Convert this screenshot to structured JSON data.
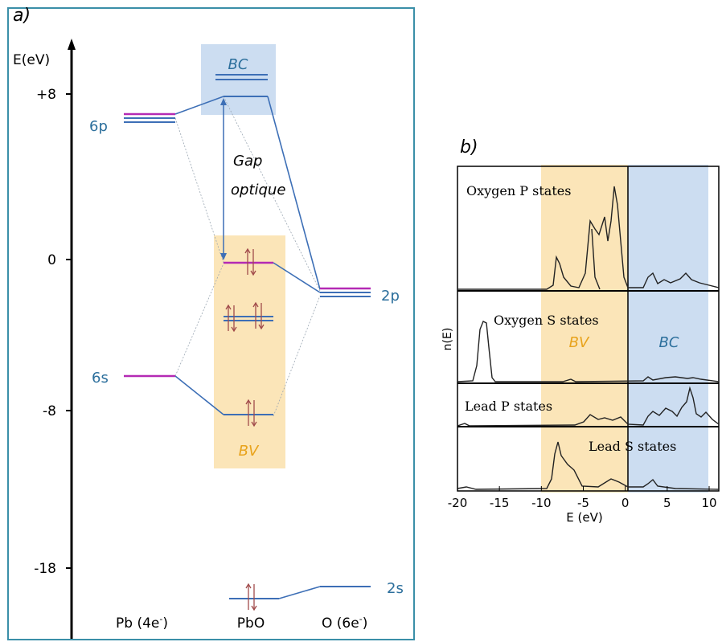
{
  "panel_a": {
    "label": "a)",
    "axis_label": "E(eV)",
    "ticks": [
      {
        "value": 8,
        "label": "+8"
      },
      {
        "value": 0,
        "label": "0"
      },
      {
        "value": -8,
        "label": "-8"
      },
      {
        "value": -18,
        "label": "-18"
      }
    ],
    "bc_label": "BC",
    "bv_label": "BV",
    "gap_label_line1": "Gap",
    "gap_label_line2": "optique",
    "pb_levels": [
      {
        "label": "6p",
        "energy": 7.2
      },
      {
        "label": "6s",
        "energy": -6.2
      }
    ],
    "o_levels": [
      {
        "label": "2p",
        "energy": -1.7
      },
      {
        "label": "2s",
        "energy": -16.4
      }
    ],
    "pbo_levels": {
      "bc": 8.5,
      "top_vb": 0,
      "mid": -3,
      "bottom_vb": -8,
      "deep": -17
    },
    "columns": {
      "pb_base": "Pb (4e",
      "pb_sup": "-",
      "pb_end": ")",
      "pbo": "PbO",
      "o_base": "O (6e",
      "o_sup": "-",
      "o_end": ")"
    },
    "colors": {
      "frame": "#3a8fa8",
      "level_blue": "#3d6fb6",
      "level_magenta": "#b42ab4",
      "text_blue": "#2c6f9c",
      "bc_shade": "#c7d9ef",
      "bv_shade": "#fbe2b0",
      "bv_text": "#e8a31c",
      "spin_arrow": "#a14b4b"
    }
  },
  "panel_b": {
    "label": "b)",
    "ylabel": "n(E)",
    "xlabel": "E (eV)",
    "bv_label": "BV",
    "bc_label": "BC",
    "x_ticks": [
      -20,
      -15,
      -10,
      -5,
      0,
      5,
      10
    ],
    "panels": [
      {
        "label": "Oxygen P states"
      },
      {
        "label": "Oxygen S states"
      },
      {
        "label": "Lead P states"
      },
      {
        "label": "Lead S states"
      }
    ],
    "colors": {
      "bv_shade": "#fbe2b0",
      "bc_shade": "#c7d9ef",
      "bv_text": "#e8a31c",
      "bc_text": "#2c6f9c"
    }
  }
}
